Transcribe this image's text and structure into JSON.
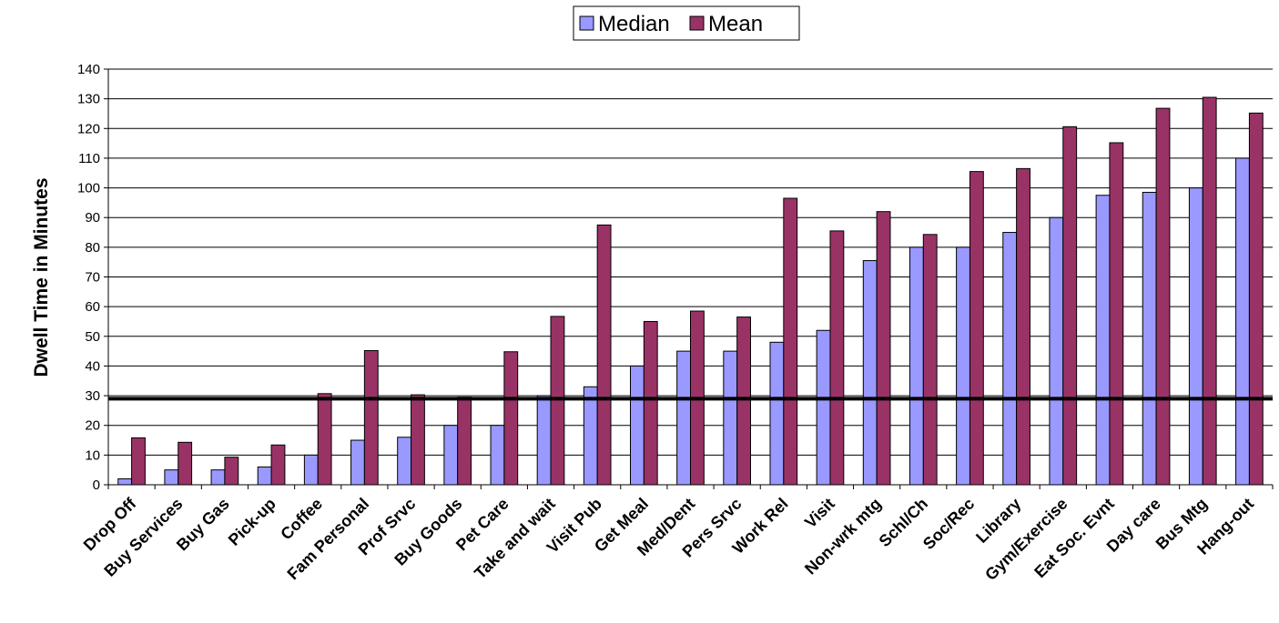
{
  "chart_data": {
    "type": "bar",
    "title": "",
    "xlabel": "",
    "ylabel": "Dwell Time in Minutes",
    "ylim": [
      0,
      140
    ],
    "ytick_step": 10,
    "grid": "horizontal",
    "legend_position": "top-center",
    "reference_line": 29,
    "categories": [
      "Drop Off",
      "Buy Services",
      "Buy Gas",
      "Pick-up",
      "Coffee",
      "Fam Personal",
      "Prof Srvc",
      "Buy Goods",
      "Pet Care",
      "Take and wait",
      "Visit Pub",
      "Get Meal",
      "Med/Dent",
      "Pers Srvc",
      "Work Rel",
      "Visit",
      "Non-wrk mtg",
      "Schl/Ch",
      "Soc/Rec",
      "Library",
      "Gym/Exercise",
      "Eat Soc. Evnt",
      "Day care",
      "Bus Mtg",
      "Hang-out"
    ],
    "series": [
      {
        "name": "Median",
        "color": "#9999ff",
        "values": [
          2,
          5,
          5,
          6,
          10,
          15,
          16,
          20,
          20,
          30,
          33,
          40,
          45,
          45,
          48,
          52,
          75.5,
          80,
          80,
          85,
          90,
          97.5,
          98.5,
          100,
          110
        ]
      },
      {
        "name": "Mean",
        "color": "#993366",
        "values": [
          15.8,
          14.3,
          9.3,
          13.4,
          30.7,
          45.2,
          30.3,
          29.5,
          44.8,
          56.7,
          87.5,
          55,
          58.5,
          56.5,
          96.5,
          85.5,
          92,
          84.3,
          105.5,
          106.5,
          120.6,
          115.2,
          126.8,
          130.5,
          125.2
        ]
      }
    ]
  }
}
